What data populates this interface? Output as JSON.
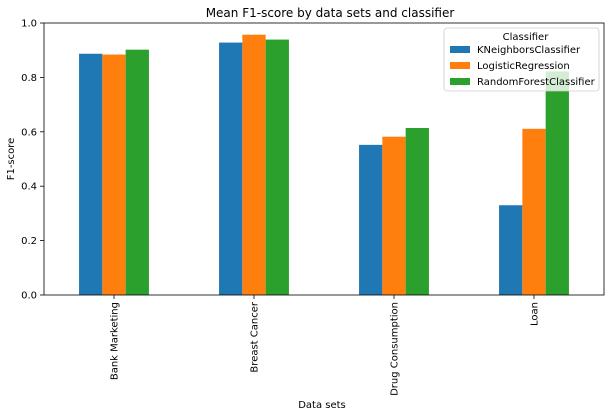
{
  "chart_data": {
    "type": "bar",
    "title": "Mean F1-score by data sets and classifier",
    "xlabel": "Data sets",
    "ylabel": "F1-score",
    "categories": [
      "Bank Marketing",
      "Breast Cancer",
      "Drug Consumption",
      "Loan"
    ],
    "series": [
      {
        "name": "KNeighborsClassifier",
        "color": "#1f77b4",
        "values": [
          0.887,
          0.928,
          0.552,
          0.33
        ]
      },
      {
        "name": "LogisticRegression",
        "color": "#ff7f0e",
        "values": [
          0.884,
          0.957,
          0.582,
          0.611
        ]
      },
      {
        "name": "RandomForestClassifier",
        "color": "#2ca02c",
        "values": [
          0.902,
          0.939,
          0.614,
          0.822
        ]
      }
    ],
    "ylim": [
      0,
      1.0
    ],
    "yticks": [
      "0.0",
      "0.2",
      "0.4",
      "0.6",
      "0.8",
      "1.0"
    ],
    "legend": {
      "title": "Classifier",
      "placement": "top-right"
    },
    "grid": false
  }
}
